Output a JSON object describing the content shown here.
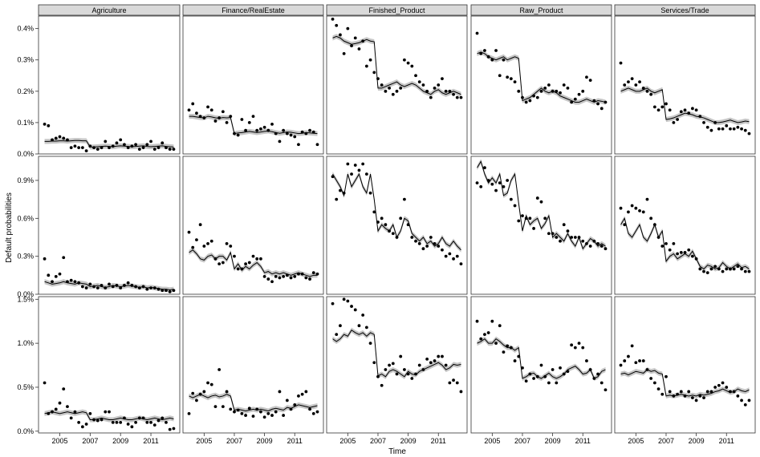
{
  "chart_data": {
    "type": "scatter",
    "description_of_marks": "points = observed default probabilities; line = fitted model with shaded confidence band",
    "ylabel": "Default probabilities",
    "xlabel": "Time",
    "columns": [
      "Agriculture",
      "Finance/RealEstate",
      "Finished_Product",
      "Raw_Product",
      "Services/Trade"
    ],
    "x_ticks": [
      2005,
      2007,
      2009,
      2011
    ],
    "xlim": [
      2003.6,
      2012.9
    ],
    "rows": [
      {
        "ylim": [
          0.0,
          0.44
        ],
        "y_ticks": [
          0.0,
          0.1,
          0.2,
          0.3,
          0.4
        ],
        "y_tick_labels": [
          "0.0%",
          "0.1%",
          "0.2%",
          "0.3%",
          "0.4%"
        ]
      },
      {
        "ylim": [
          0.0,
          1.09
        ],
        "y_ticks": [
          0.0,
          0.3,
          0.6,
          0.9
        ],
        "y_tick_labels": [
          "0.0%",
          "0.3%",
          "0.6%",
          "0.9%"
        ]
      },
      {
        "ylim": [
          -0.02,
          1.53
        ],
        "y_ticks": [
          0.0,
          0.5,
          1.0,
          1.5
        ],
        "y_tick_labels": [
          "0.0%",
          "0.5%",
          "1.0%",
          "1.5%"
        ]
      }
    ],
    "panels": [
      {
        "row": 0,
        "col": 0,
        "obs": [
          0.095,
          0.09,
          0.045,
          0.05,
          0.055,
          0.05,
          0.045,
          0.02,
          0.025,
          0.02,
          0.02,
          0.01,
          0.025,
          0.02,
          0.015,
          0.02,
          0.04,
          0.02,
          0.025,
          0.035,
          0.045,
          0.03,
          0.02,
          0.025,
          0.03,
          0.015,
          0.02,
          0.03,
          0.04,
          0.015,
          0.02,
          0.035,
          0.02,
          0.015,
          0.015
        ],
        "fit": [
          0.04,
          0.04,
          0.041,
          0.041,
          0.042,
          0.042,
          0.041,
          0.042,
          0.043,
          0.043,
          0.042,
          0.042,
          0.022,
          0.022,
          0.023,
          0.024,
          0.025,
          0.024,
          0.023,
          0.025,
          0.026,
          0.025,
          0.024,
          0.023,
          0.024,
          0.025,
          0.026,
          0.024,
          0.023,
          0.024,
          0.025,
          0.026,
          0.024,
          0.023,
          0.022
        ]
      },
      {
        "row": 0,
        "col": 1,
        "obs": [
          0.14,
          0.16,
          0.13,
          0.12,
          0.115,
          0.15,
          0.14,
          0.105,
          0.115,
          0.135,
          0.1,
          0.12,
          0.065,
          0.06,
          0.11,
          0.075,
          0.1,
          0.12,
          0.075,
          0.08,
          0.085,
          0.075,
          0.095,
          0.065,
          0.04,
          0.075,
          0.065,
          0.06,
          0.055,
          0.03,
          0.07,
          0.065,
          0.075,
          0.07,
          0.03
        ],
        "fit": [
          0.12,
          0.12,
          0.118,
          0.116,
          0.115,
          0.12,
          0.118,
          0.115,
          0.114,
          0.116,
          0.115,
          0.116,
          0.065,
          0.067,
          0.068,
          0.07,
          0.072,
          0.07,
          0.068,
          0.07,
          0.072,
          0.073,
          0.071,
          0.068,
          0.066,
          0.068,
          0.07,
          0.069,
          0.067,
          0.065,
          0.066,
          0.068,
          0.067,
          0.066,
          0.065
        ]
      },
      {
        "row": 0,
        "col": 2,
        "obs": [
          0.43,
          0.41,
          0.38,
          0.32,
          0.4,
          0.345,
          0.37,
          0.335,
          0.36,
          0.28,
          0.3,
          0.26,
          0.24,
          0.22,
          0.2,
          0.21,
          0.19,
          0.2,
          0.21,
          0.3,
          0.29,
          0.28,
          0.25,
          0.23,
          0.22,
          0.2,
          0.18,
          0.21,
          0.22,
          0.24,
          0.2,
          0.2,
          0.19,
          0.18,
          0.18
        ],
        "fit": [
          0.37,
          0.375,
          0.37,
          0.36,
          0.355,
          0.35,
          0.352,
          0.355,
          0.36,
          0.365,
          0.36,
          0.358,
          0.21,
          0.21,
          0.215,
          0.22,
          0.225,
          0.23,
          0.22,
          0.215,
          0.22,
          0.225,
          0.22,
          0.21,
          0.2,
          0.195,
          0.19,
          0.2,
          0.205,
          0.195,
          0.19,
          0.195,
          0.2,
          0.195,
          0.19
        ]
      },
      {
        "row": 0,
        "col": 3,
        "obs": [
          0.385,
          0.32,
          0.33,
          0.31,
          0.3,
          0.33,
          0.25,
          0.3,
          0.245,
          0.24,
          0.23,
          0.2,
          0.18,
          0.165,
          0.17,
          0.185,
          0.18,
          0.2,
          0.21,
          0.22,
          0.2,
          0.2,
          0.195,
          0.22,
          0.21,
          0.165,
          0.175,
          0.19,
          0.2,
          0.245,
          0.235,
          0.17,
          0.16,
          0.145,
          0.165
        ],
        "fit": [
          0.32,
          0.325,
          0.32,
          0.31,
          0.305,
          0.3,
          0.305,
          0.31,
          0.3,
          0.305,
          0.31,
          0.305,
          0.17,
          0.175,
          0.18,
          0.19,
          0.2,
          0.21,
          0.2,
          0.195,
          0.2,
          0.195,
          0.185,
          0.18,
          0.175,
          0.17,
          0.165,
          0.165,
          0.17,
          0.175,
          0.17,
          0.165,
          0.17,
          0.168,
          0.165
        ]
      },
      {
        "row": 0,
        "col": 4,
        "obs": [
          0.29,
          0.22,
          0.23,
          0.24,
          0.22,
          0.23,
          0.21,
          0.2,
          0.19,
          0.15,
          0.14,
          0.15,
          0.16,
          0.14,
          0.1,
          0.11,
          0.135,
          0.14,
          0.13,
          0.145,
          0.14,
          0.12,
          0.1,
          0.085,
          0.075,
          0.1,
          0.08,
          0.08,
          0.09,
          0.08,
          0.08,
          0.085,
          0.08,
          0.075,
          0.065
        ],
        "fit": [
          0.2,
          0.205,
          0.21,
          0.205,
          0.2,
          0.2,
          0.205,
          0.21,
          0.2,
          0.195,
          0.2,
          0.205,
          0.11,
          0.112,
          0.115,
          0.12,
          0.125,
          0.13,
          0.128,
          0.125,
          0.12,
          0.118,
          0.115,
          0.11,
          0.105,
          0.1,
          0.1,
          0.102,
          0.105,
          0.108,
          0.104,
          0.1,
          0.102,
          0.105,
          0.103
        ]
      },
      {
        "row": 1,
        "col": 0,
        "obs": [
          0.28,
          0.15,
          0.1,
          0.14,
          0.16,
          0.29,
          0.1,
          0.11,
          0.1,
          0.09,
          0.06,
          0.05,
          0.08,
          0.06,
          0.05,
          0.07,
          0.05,
          0.08,
          0.06,
          0.07,
          0.05,
          0.07,
          0.09,
          0.07,
          0.06,
          0.05,
          0.06,
          0.04,
          0.05,
          0.05,
          0.04,
          0.03,
          0.03,
          0.02,
          0.03
        ],
        "fit": [
          0.1,
          0.09,
          0.08,
          0.085,
          0.09,
          0.1,
          0.09,
          0.085,
          0.08,
          0.09,
          0.085,
          0.08,
          0.06,
          0.065,
          0.07,
          0.06,
          0.055,
          0.06,
          0.07,
          0.065,
          0.06,
          0.065,
          0.07,
          0.065,
          0.06,
          0.055,
          0.06,
          0.05,
          0.055,
          0.05,
          0.045,
          0.04,
          0.04,
          0.035,
          0.04
        ]
      },
      {
        "row": 1,
        "col": 1,
        "obs": [
          0.49,
          0.37,
          0.43,
          0.55,
          0.38,
          0.4,
          0.42,
          0.28,
          0.24,
          0.25,
          0.4,
          0.38,
          0.3,
          0.2,
          0.2,
          0.24,
          0.25,
          0.3,
          0.28,
          0.28,
          0.14,
          0.12,
          0.1,
          0.14,
          0.13,
          0.14,
          0.15,
          0.13,
          0.14,
          0.16,
          0.16,
          0.13,
          0.12,
          0.17,
          0.16
        ],
        "fit": [
          0.33,
          0.35,
          0.32,
          0.28,
          0.27,
          0.3,
          0.31,
          0.28,
          0.3,
          0.3,
          0.27,
          0.33,
          0.2,
          0.24,
          0.19,
          0.22,
          0.2,
          0.23,
          0.25,
          0.22,
          0.17,
          0.18,
          0.16,
          0.17,
          0.16,
          0.17,
          0.16,
          0.15,
          0.16,
          0.17,
          0.16,
          0.15,
          0.14,
          0.15,
          0.15
        ]
      },
      {
        "row": 1,
        "col": 2,
        "obs": [
          0.93,
          0.75,
          0.82,
          0.8,
          1.03,
          0.95,
          1.02,
          0.98,
          1.03,
          0.95,
          0.8,
          0.65,
          0.57,
          0.6,
          0.55,
          0.5,
          0.48,
          0.45,
          0.6,
          0.75,
          0.55,
          0.45,
          0.42,
          0.4,
          0.36,
          0.38,
          0.45,
          0.4,
          0.38,
          0.35,
          0.3,
          0.32,
          0.28,
          0.3,
          0.24
        ],
        "fit": [
          0.95,
          0.9,
          0.85,
          0.78,
          0.95,
          0.85,
          0.9,
          0.95,
          0.85,
          0.8,
          0.95,
          0.75,
          0.5,
          0.55,
          0.52,
          0.5,
          0.55,
          0.45,
          0.5,
          0.6,
          0.58,
          0.48,
          0.45,
          0.42,
          0.45,
          0.4,
          0.42,
          0.38,
          0.4,
          0.45,
          0.4,
          0.38,
          0.42,
          0.38,
          0.35
        ]
      },
      {
        "row": 1,
        "col": 3,
        "obs": [
          0.88,
          0.85,
          1.0,
          0.9,
          0.87,
          0.82,
          0.88,
          0.85,
          0.9,
          0.75,
          0.7,
          0.58,
          0.62,
          0.6,
          0.6,
          0.52,
          0.76,
          0.73,
          0.6,
          0.48,
          0.48,
          0.45,
          0.42,
          0.55,
          0.5,
          0.45,
          0.45,
          0.45,
          0.42,
          0.4,
          0.38,
          0.42,
          0.4,
          0.38,
          0.36
        ],
        "fit": [
          1.0,
          1.05,
          0.95,
          0.88,
          0.92,
          0.88,
          0.95,
          0.78,
          0.8,
          0.9,
          0.95,
          0.72,
          0.5,
          0.62,
          0.55,
          0.58,
          0.6,
          0.52,
          0.56,
          0.62,
          0.45,
          0.48,
          0.45,
          0.42,
          0.48,
          0.42,
          0.38,
          0.45,
          0.36,
          0.4,
          0.44,
          0.42,
          0.38,
          0.4,
          0.38
        ]
      },
      {
        "row": 1,
        "col": 4,
        "obs": [
          0.68,
          0.55,
          0.65,
          0.7,
          0.68,
          0.66,
          0.65,
          0.75,
          0.6,
          0.55,
          0.45,
          0.38,
          0.4,
          0.35,
          0.4,
          0.32,
          0.33,
          0.33,
          0.35,
          0.3,
          0.28,
          0.2,
          0.18,
          0.17,
          0.2,
          0.22,
          0.2,
          0.18,
          0.2,
          0.2,
          0.2,
          0.22,
          0.2,
          0.18,
          0.18
        ],
        "fit": [
          0.55,
          0.6,
          0.48,
          0.45,
          0.5,
          0.55,
          0.45,
          0.42,
          0.48,
          0.55,
          0.45,
          0.5,
          0.26,
          0.3,
          0.32,
          0.28,
          0.3,
          0.32,
          0.3,
          0.34,
          0.28,
          0.22,
          0.2,
          0.23,
          0.22,
          0.2,
          0.21,
          0.25,
          0.22,
          0.2,
          0.22,
          0.24,
          0.21,
          0.22,
          0.2
        ]
      },
      {
        "row": 2,
        "col": 0,
        "obs": [
          0.55,
          0.2,
          0.22,
          0.25,
          0.32,
          0.48,
          0.28,
          0.15,
          0.22,
          0.1,
          0.05,
          0.08,
          0.2,
          0.13,
          0.12,
          0.13,
          0.22,
          0.22,
          0.1,
          0.1,
          0.1,
          0.15,
          0.08,
          0.05,
          0.1,
          0.15,
          0.15,
          0.1,
          0.1,
          0.07,
          0.12,
          0.15,
          0.1,
          0.02,
          0.03
        ],
        "fit": [
          0.2,
          0.21,
          0.22,
          0.21,
          0.2,
          0.21,
          0.22,
          0.21,
          0.2,
          0.21,
          0.22,
          0.21,
          0.13,
          0.13,
          0.14,
          0.15,
          0.14,
          0.13,
          0.13,
          0.14,
          0.15,
          0.14,
          0.13,
          0.13,
          0.14,
          0.15,
          0.14,
          0.13,
          0.14,
          0.15,
          0.14,
          0.13,
          0.14,
          0.15,
          0.14
        ]
      },
      {
        "row": 2,
        "col": 1,
        "obs": [
          0.2,
          0.43,
          0.35,
          0.42,
          0.45,
          0.55,
          0.53,
          0.28,
          0.7,
          0.28,
          0.45,
          0.25,
          0.22,
          0.24,
          0.2,
          0.18,
          0.26,
          0.17,
          0.25,
          0.22,
          0.16,
          0.2,
          0.18,
          0.22,
          0.45,
          0.18,
          0.35,
          0.25,
          0.3,
          0.4,
          0.42,
          0.45,
          0.25,
          0.2,
          0.22
        ],
        "fit": [
          0.4,
          0.38,
          0.4,
          0.42,
          0.4,
          0.38,
          0.4,
          0.41,
          0.39,
          0.4,
          0.42,
          0.4,
          0.24,
          0.25,
          0.24,
          0.23,
          0.24,
          0.25,
          0.24,
          0.25,
          0.24,
          0.23,
          0.25,
          0.26,
          0.25,
          0.24,
          0.27,
          0.26,
          0.28,
          0.3,
          0.29,
          0.28,
          0.27,
          0.28,
          0.29
        ]
      },
      {
        "row": 2,
        "col": 2,
        "obs": [
          1.45,
          1.1,
          1.2,
          1.5,
          1.48,
          1.42,
          1.38,
          1.2,
          1.32,
          1.18,
          1.0,
          0.78,
          0.62,
          0.52,
          0.7,
          0.75,
          0.77,
          0.65,
          0.85,
          0.7,
          0.65,
          0.6,
          0.65,
          0.75,
          0.7,
          0.82,
          0.78,
          0.8,
          0.85,
          0.85,
          0.75,
          0.55,
          0.58,
          0.55,
          0.45
        ],
        "fit": [
          1.05,
          1.02,
          1.05,
          1.1,
          1.08,
          1.15,
          1.12,
          1.1,
          1.12,
          1.08,
          1.12,
          1.1,
          0.63,
          0.65,
          0.62,
          0.68,
          0.7,
          0.68,
          0.65,
          0.62,
          0.68,
          0.65,
          0.64,
          0.68,
          0.7,
          0.72,
          0.74,
          0.76,
          0.78,
          0.75,
          0.7,
          0.72,
          0.76,
          0.75,
          0.76
        ]
      },
      {
        "row": 2,
        "col": 3,
        "obs": [
          1.25,
          1.05,
          1.1,
          1.12,
          1.25,
          1.0,
          1.2,
          0.9,
          0.97,
          0.95,
          0.8,
          0.85,
          0.72,
          0.57,
          0.65,
          0.6,
          0.62,
          0.75,
          0.62,
          0.55,
          0.7,
          0.55,
          0.72,
          0.65,
          0.68,
          0.98,
          0.95,
          1.0,
          0.95,
          0.8,
          0.7,
          0.6,
          0.65,
          0.55,
          0.47
        ],
        "fit": [
          1.0,
          1.02,
          1.05,
          1.0,
          1.0,
          1.05,
          1.02,
          0.98,
          0.95,
          0.95,
          0.92,
          0.95,
          0.6,
          0.62,
          0.65,
          0.66,
          0.62,
          0.6,
          0.63,
          0.66,
          0.62,
          0.6,
          0.62,
          0.65,
          0.7,
          0.72,
          0.74,
          0.7,
          0.65,
          0.66,
          0.7,
          0.6,
          0.62,
          0.68,
          0.7
        ]
      },
      {
        "row": 2,
        "col": 4,
        "obs": [
          0.75,
          0.8,
          0.85,
          0.97,
          0.78,
          0.8,
          0.8,
          0.7,
          0.6,
          0.55,
          0.48,
          0.42,
          0.62,
          0.45,
          0.4,
          0.42,
          0.45,
          0.4,
          0.45,
          0.38,
          0.35,
          0.4,
          0.38,
          0.45,
          0.45,
          0.5,
          0.52,
          0.55,
          0.5,
          0.45,
          0.45,
          0.4,
          0.35,
          0.3,
          0.35
        ],
        "fit": [
          0.65,
          0.66,
          0.64,
          0.66,
          0.68,
          0.67,
          0.66,
          0.7,
          0.68,
          0.69,
          0.66,
          0.65,
          0.4,
          0.41,
          0.4,
          0.41,
          0.42,
          0.41,
          0.4,
          0.41,
          0.4,
          0.42,
          0.41,
          0.42,
          0.43,
          0.45,
          0.46,
          0.48,
          0.46,
          0.44,
          0.45,
          0.48,
          0.46,
          0.45,
          0.47
        ]
      }
    ]
  }
}
